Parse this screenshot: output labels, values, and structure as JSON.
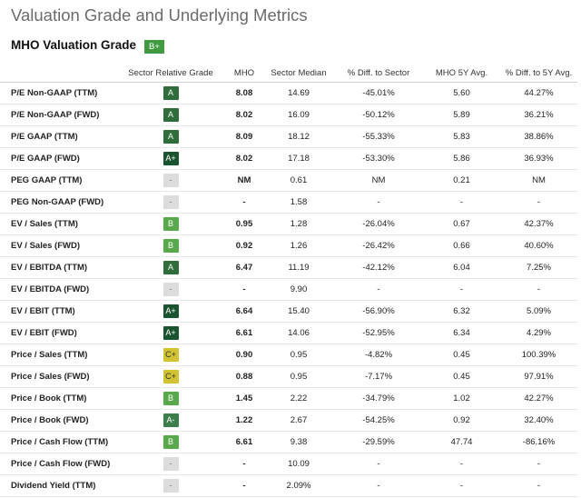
{
  "title": "Valuation Grade and Underlying Metrics",
  "grade_heading": "MHO Valuation Grade",
  "overall_grade": "B+",
  "grade_colors": {
    "A+": "#19532f",
    "A": "#2f6e3c",
    "A-": "#3b7e4a",
    "B+": "#3f9a40",
    "B": "#5aa84c",
    "C+": "#d2c232",
    "-": "#dcdcdc"
  },
  "columns": [
    "",
    "Sector Relative Grade",
    "MHO",
    "Sector Median",
    "% Diff. to Sector",
    "MHO 5Y Avg.",
    "% Diff. to 5Y Avg."
  ],
  "rows": [
    {
      "metric": "P/E Non-GAAP (TTM)",
      "grade": "A",
      "mho": "8.08",
      "median": "14.69",
      "diff_sector": "-45.01%",
      "avg5y": "5.60",
      "diff_5y": "44.27%"
    },
    {
      "metric": "P/E Non-GAAP (FWD)",
      "grade": "A",
      "mho": "8.02",
      "median": "16.09",
      "diff_sector": "-50.12%",
      "avg5y": "5.89",
      "diff_5y": "36.21%"
    },
    {
      "metric": "P/E GAAP (TTM)",
      "grade": "A",
      "mho": "8.09",
      "median": "18.12",
      "diff_sector": "-55.33%",
      "avg5y": "5.83",
      "diff_5y": "38.86%"
    },
    {
      "metric": "P/E GAAP (FWD)",
      "grade": "A+",
      "mho": "8.02",
      "median": "17.18",
      "diff_sector": "-53.30%",
      "avg5y": "5.86",
      "diff_5y": "36.93%"
    },
    {
      "metric": "PEG GAAP (TTM)",
      "grade": "-",
      "mho": "NM",
      "median": "0.61",
      "diff_sector": "NM",
      "avg5y": "0.21",
      "diff_5y": "NM"
    },
    {
      "metric": "PEG Non-GAAP (FWD)",
      "grade": "-",
      "mho": "-",
      "median": "1.58",
      "diff_sector": "-",
      "avg5y": "-",
      "diff_5y": "-"
    },
    {
      "metric": "EV / Sales (TTM)",
      "grade": "B",
      "mho": "0.95",
      "median": "1.28",
      "diff_sector": "-26.04%",
      "avg5y": "0.67",
      "diff_5y": "42.37%"
    },
    {
      "metric": "EV / Sales (FWD)",
      "grade": "B",
      "mho": "0.92",
      "median": "1.26",
      "diff_sector": "-26.42%",
      "avg5y": "0.66",
      "diff_5y": "40.60%"
    },
    {
      "metric": "EV / EBITDA (TTM)",
      "grade": "A",
      "mho": "6.47",
      "median": "11.19",
      "diff_sector": "-42.12%",
      "avg5y": "6.04",
      "diff_5y": "7.25%"
    },
    {
      "metric": "EV / EBITDA (FWD)",
      "grade": "-",
      "mho": "-",
      "median": "9.90",
      "diff_sector": "-",
      "avg5y": "-",
      "diff_5y": "-"
    },
    {
      "metric": "EV / EBIT (TTM)",
      "grade": "A+",
      "mho": "6.64",
      "median": "15.40",
      "diff_sector": "-56.90%",
      "avg5y": "6.32",
      "diff_5y": "5.09%"
    },
    {
      "metric": "EV / EBIT (FWD)",
      "grade": "A+",
      "mho": "6.61",
      "median": "14.06",
      "diff_sector": "-52.95%",
      "avg5y": "6.34",
      "diff_5y": "4.29%"
    },
    {
      "metric": "Price / Sales (TTM)",
      "grade": "C+",
      "mho": "0.90",
      "median": "0.95",
      "diff_sector": "-4.82%",
      "avg5y": "0.45",
      "diff_5y": "100.39%"
    },
    {
      "metric": "Price / Sales (FWD)",
      "grade": "C+",
      "mho": "0.88",
      "median": "0.95",
      "diff_sector": "-7.17%",
      "avg5y": "0.45",
      "diff_5y": "97.91%"
    },
    {
      "metric": "Price / Book (TTM)",
      "grade": "B",
      "mho": "1.45",
      "median": "2.22",
      "diff_sector": "-34.79%",
      "avg5y": "1.02",
      "diff_5y": "42.27%"
    },
    {
      "metric": "Price / Book (FWD)",
      "grade": "A-",
      "mho": "1.22",
      "median": "2.67",
      "diff_sector": "-54.25%",
      "avg5y": "0.92",
      "diff_5y": "32.40%"
    },
    {
      "metric": "Price / Cash Flow (TTM)",
      "grade": "B",
      "mho": "6.61",
      "median": "9.38",
      "diff_sector": "-29.59%",
      "avg5y": "47.74",
      "diff_5y": "-86.16%"
    },
    {
      "metric": "Price / Cash Flow (FWD)",
      "grade": "-",
      "mho": "-",
      "median": "10.09",
      "diff_sector": "-",
      "avg5y": "-",
      "diff_5y": "-"
    },
    {
      "metric": "Dividend Yield (TTM)",
      "grade": "-",
      "mho": "-",
      "median": "2.09%",
      "diff_sector": "-",
      "avg5y": "-",
      "diff_5y": "-"
    }
  ]
}
